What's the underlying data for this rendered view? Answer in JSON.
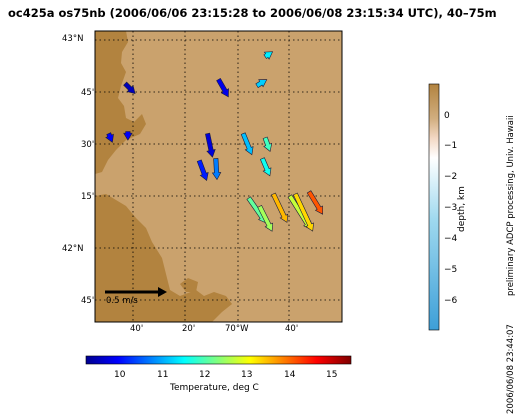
{
  "title": "oc425a os75nb (2006/06/06 23:15:28 to 2006/06/08 23:15:34 UTC), 40–75m",
  "map": {
    "lat_labels": [
      "43°N",
      "45'",
      "30'",
      "15'",
      "42°N",
      "45'"
    ],
    "lon_labels": [
      "40'",
      "20'",
      "70°W",
      "40'"
    ],
    "scale_label": "0.5 m/s",
    "land_color": "#b2833f",
    "shelf_color": "#caa26d",
    "velocity_vectors": [
      {
        "lat": 42.92,
        "lon": -70.38,
        "u": 0.06,
        "v": 0.04,
        "temp_C": 11.5
      },
      {
        "lat": 42.78,
        "lon": -70.41,
        "u": 0.08,
        "v": 0.05,
        "temp_C": 11.3
      },
      {
        "lat": 42.79,
        "lon": -70.89,
        "u": 0.08,
        "v": -0.08,
        "temp_C": 9.6
      },
      {
        "lat": 42.81,
        "lon": -70.55,
        "u": 0.08,
        "v": -0.14,
        "temp_C": 9.9
      },
      {
        "lat": 42.55,
        "lon": -70.95,
        "u": 0.03,
        "v": -0.07,
        "temp_C": 10.0
      },
      {
        "lat": 42.56,
        "lon": -70.88,
        "u": 0.0,
        "v": -0.07,
        "temp_C": 10.0
      },
      {
        "lat": 42.55,
        "lon": -70.59,
        "u": 0.04,
        "v": -0.19,
        "temp_C": 9.8
      },
      {
        "lat": 42.55,
        "lon": -70.46,
        "u": 0.07,
        "v": -0.17,
        "temp_C": 11.2
      },
      {
        "lat": 42.53,
        "lon": -70.38,
        "u": 0.04,
        "v": -0.11,
        "temp_C": 12.0
      },
      {
        "lat": 42.42,
        "lon": -70.62,
        "u": 0.06,
        "v": -0.16,
        "temp_C": 10.2
      },
      {
        "lat": 42.43,
        "lon": -70.56,
        "u": 0.01,
        "v": -0.17,
        "temp_C": 10.8
      },
      {
        "lat": 42.43,
        "lon": -70.39,
        "u": 0.06,
        "v": -0.14,
        "temp_C": 11.7
      },
      {
        "lat": 42.24,
        "lon": -70.44,
        "u": 0.14,
        "v": -0.2,
        "temp_C": 12.2
      },
      {
        "lat": 42.26,
        "lon": -70.35,
        "u": 0.11,
        "v": -0.23,
        "temp_C": 13.6
      },
      {
        "lat": 42.25,
        "lon": -70.29,
        "u": 0.17,
        "v": -0.27,
        "temp_C": 12.8
      },
      {
        "lat": 42.27,
        "lon": -70.22,
        "u": 0.11,
        "v": -0.18,
        "temp_C": 14.2
      },
      {
        "lat": 42.26,
        "lon": -70.27,
        "u": 0.14,
        "v": -0.3,
        "temp_C": 13.4
      },
      {
        "lat": 42.2,
        "lon": -70.4,
        "u": 0.1,
        "v": -0.2,
        "temp_C": 12.6
      }
    ]
  },
  "depth_colorbar": {
    "ticks": [
      "0",
      "−1",
      "−2",
      "−3",
      "−4",
      "−5",
      "−6"
    ],
    "label": "depth, km"
  },
  "temp_colorbar": {
    "ticks": [
      "10",
      "11",
      "12",
      "13",
      "14",
      "15"
    ],
    "label": "Temperature, deg C"
  },
  "side_credit": "preliminary ADCP processing,  Univ. Hawaii",
  "timestamp": "2006/06/08 23:44:07"
}
